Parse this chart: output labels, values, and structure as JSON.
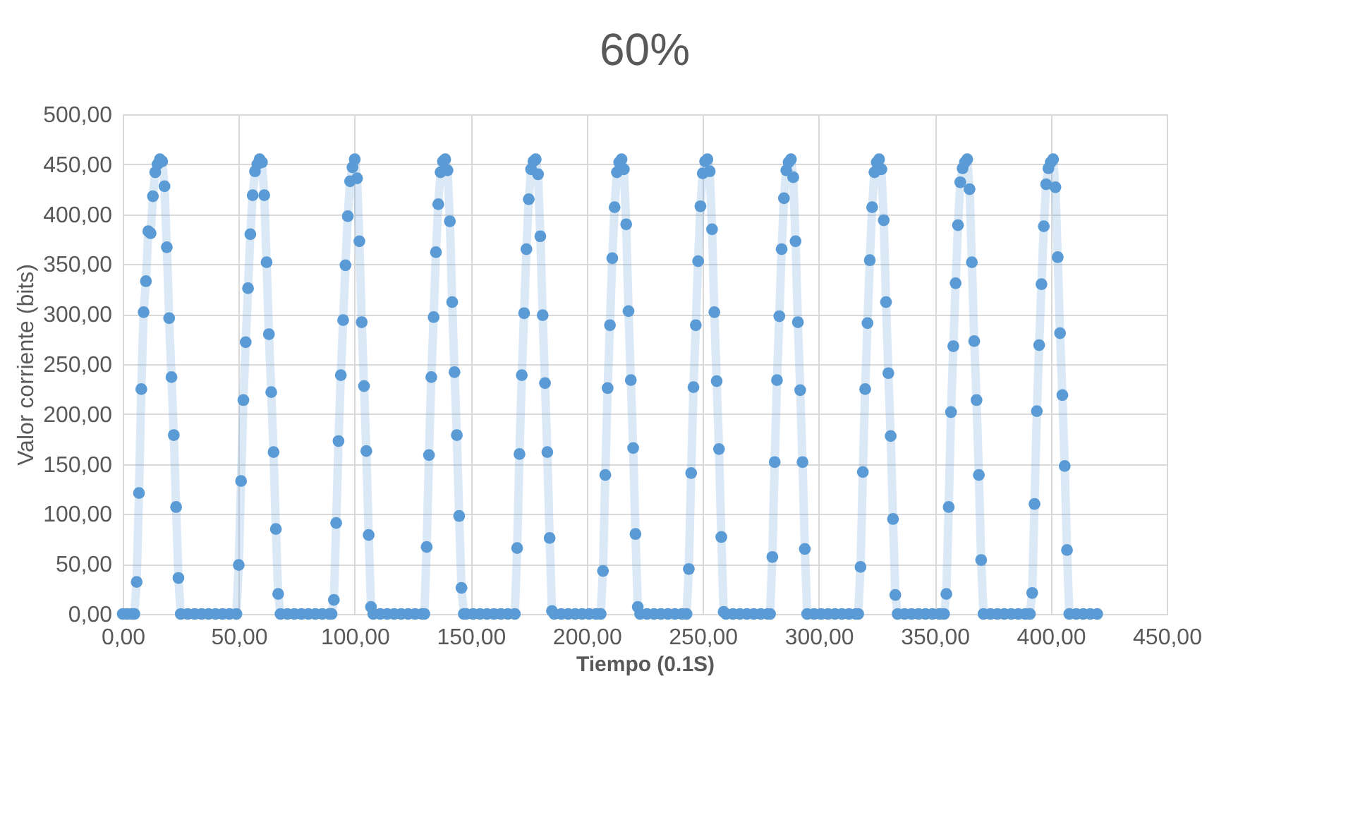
{
  "chart_data": {
    "type": "line",
    "title": "60%",
    "xlabel": "Tiempo (0.1S)",
    "ylabel": "Valor corriente (bits)",
    "xlim": [
      0,
      450
    ],
    "ylim": [
      0,
      500
    ],
    "xticks": [
      {
        "value": 0,
        "label": "0,00"
      },
      {
        "value": 50,
        "label": "50,00"
      },
      {
        "value": 100,
        "label": "100,00"
      },
      {
        "value": 150,
        "label": "150,00"
      },
      {
        "value": 200,
        "label": "200,00"
      },
      {
        "value": 250,
        "label": "250,00"
      },
      {
        "value": 300,
        "label": "300,00"
      },
      {
        "value": 350,
        "label": "350,00"
      },
      {
        "value": 400,
        "label": "400,00"
      },
      {
        "value": 450,
        "label": "450,00"
      }
    ],
    "yticks": [
      {
        "value": 0,
        "label": "0,00"
      },
      {
        "value": 50,
        "label": "50,00"
      },
      {
        "value": 100,
        "label": "100,00"
      },
      {
        "value": 150,
        "label": "150,00"
      },
      {
        "value": 200,
        "label": "200,00"
      },
      {
        "value": 250,
        "label": "250,00"
      },
      {
        "value": 300,
        "label": "300,00"
      },
      {
        "value": 350,
        "label": "350,00"
      },
      {
        "value": 400,
        "label": "400,00"
      },
      {
        "value": 450,
        "label": "450,00"
      },
      {
        "value": 500,
        "label": "500,00"
      }
    ],
    "grid": true,
    "marker": "circle",
    "line_style": "solid",
    "series": [
      {
        "color": "#5b9bd5",
        "x": [
          0,
          2,
          4,
          5,
          6,
          7,
          8,
          9,
          10,
          11,
          12,
          13,
          14,
          15,
          16,
          17,
          18,
          19,
          20,
          21,
          22,
          23,
          24,
          25,
          28,
          31,
          34,
          37,
          40,
          43,
          46,
          49,
          50,
          51,
          52,
          53,
          54,
          55,
          56,
          57,
          58,
          59,
          60,
          61,
          62,
          63,
          64,
          65,
          66,
          67,
          68,
          71,
          74,
          77,
          80,
          83,
          86,
          89,
          90,
          91,
          92,
          93,
          94,
          95,
          96,
          97,
          98,
          99,
          100,
          101,
          102,
          103,
          104,
          105,
          106,
          107,
          108,
          111,
          114,
          117,
          120,
          123,
          126,
          129,
          130,
          131,
          132,
          133,
          134,
          135,
          136,
          137,
          138,
          139,
          140,
          141,
          142,
          143,
          144,
          145,
          146,
          147,
          148,
          151,
          154,
          157,
          160,
          163,
          166,
          169,
          170,
          171,
          172,
          173,
          174,
          175,
          176,
          177,
          178,
          179,
          180,
          181,
          182,
          183,
          184,
          185,
          186,
          189,
          192,
          195,
          198,
          201,
          204,
          206,
          207,
          208,
          209,
          210,
          211,
          212,
          213,
          214,
          215,
          216,
          217,
          218,
          219,
          220,
          221,
          222,
          223,
          226,
          229,
          232,
          235,
          238,
          241,
          243,
          244,
          245,
          246,
          247,
          248,
          249,
          250,
          251,
          252,
          253,
          254,
          255,
          256,
          257,
          258,
          259,
          260,
          263,
          266,
          269,
          272,
          275,
          278,
          279,
          280,
          281,
          282,
          283,
          284,
          285,
          286,
          287,
          288,
          289,
          290,
          291,
          292,
          293,
          294,
          295,
          298,
          301,
          304,
          307,
          310,
          313,
          316,
          317,
          318,
          319,
          320,
          321,
          322,
          323,
          324,
          325,
          326,
          327,
          328,
          329,
          330,
          331,
          332,
          333,
          334,
          337,
          340,
          343,
          346,
          349,
          352,
          354,
          355,
          356,
          357,
          358,
          359,
          360,
          361,
          362,
          363,
          364,
          365,
          366,
          367,
          368,
          369,
          370,
          371,
          374,
          377,
          380,
          383,
          386,
          389,
          391,
          392,
          393,
          394,
          395,
          396,
          397,
          398,
          399,
          400,
          401,
          402,
          403,
          404,
          405,
          406,
          407,
          408,
          411,
          414,
          417,
          420
        ],
        "values": [
          0,
          0,
          0,
          0,
          32,
          121,
          225,
          302,
          333,
          383,
          381,
          418,
          442,
          450,
          455,
          453,
          428,
          367,
          296,
          237,
          179,
          107,
          36,
          0,
          0,
          0,
          0,
          0,
          0,
          0,
          0,
          0,
          49,
          133,
          214,
          272,
          326,
          380,
          419,
          443,
          450,
          455,
          452,
          419,
          352,
          280,
          222,
          162,
          85,
          20,
          0,
          0,
          0,
          0,
          0,
          0,
          0,
          0,
          0,
          14,
          91,
          173,
          239,
          294,
          349,
          398,
          433,
          447,
          455,
          436,
          373,
          292,
          228,
          163,
          79,
          7,
          0,
          0,
          0,
          0,
          0,
          0,
          0,
          0,
          0,
          67,
          159,
          237,
          297,
          362,
          410,
          442,
          453,
          455,
          444,
          393,
          312,
          242,
          179,
          98,
          26,
          0,
          0,
          0,
          0,
          0,
          0,
          0,
          0,
          0,
          66,
          160,
          239,
          301,
          365,
          415,
          445,
          453,
          455,
          440,
          378,
          299,
          231,
          162,
          76,
          3,
          0,
          0,
          0,
          0,
          0,
          0,
          0,
          0,
          43,
          139,
          226,
          289,
          356,
          407,
          442,
          452,
          455,
          445,
          390,
          303,
          234,
          166,
          80,
          7,
          0,
          0,
          0,
          0,
          0,
          0,
          0,
          0,
          45,
          141,
          227,
          289,
          353,
          408,
          441,
          453,
          455,
          443,
          385,
          302,
          233,
          165,
          77,
          2,
          0,
          0,
          0,
          0,
          0,
          0,
          0,
          0,
          57,
          152,
          234,
          298,
          365,
          416,
          444,
          452,
          455,
          437,
          373,
          292,
          224,
          152,
          65,
          0,
          0,
          0,
          0,
          0,
          0,
          0,
          0,
          0,
          47,
          142,
          225,
          291,
          354,
          407,
          442,
          452,
          455,
          445,
          394,
          312,
          241,
          178,
          95,
          19,
          0,
          0,
          0,
          0,
          0,
          0,
          0,
          0,
          20,
          107,
          202,
          268,
          331,
          389,
          432,
          446,
          452,
          455,
          425,
          352,
          273,
          214,
          139,
          54,
          0,
          0,
          0,
          0,
          0,
          0,
          0,
          0,
          21,
          110,
          203,
          269,
          330,
          388,
          430,
          446,
          452,
          455,
          427,
          357,
          281,
          219,
          148,
          64,
          0,
          0,
          0,
          0,
          0
        ]
      }
    ]
  }
}
